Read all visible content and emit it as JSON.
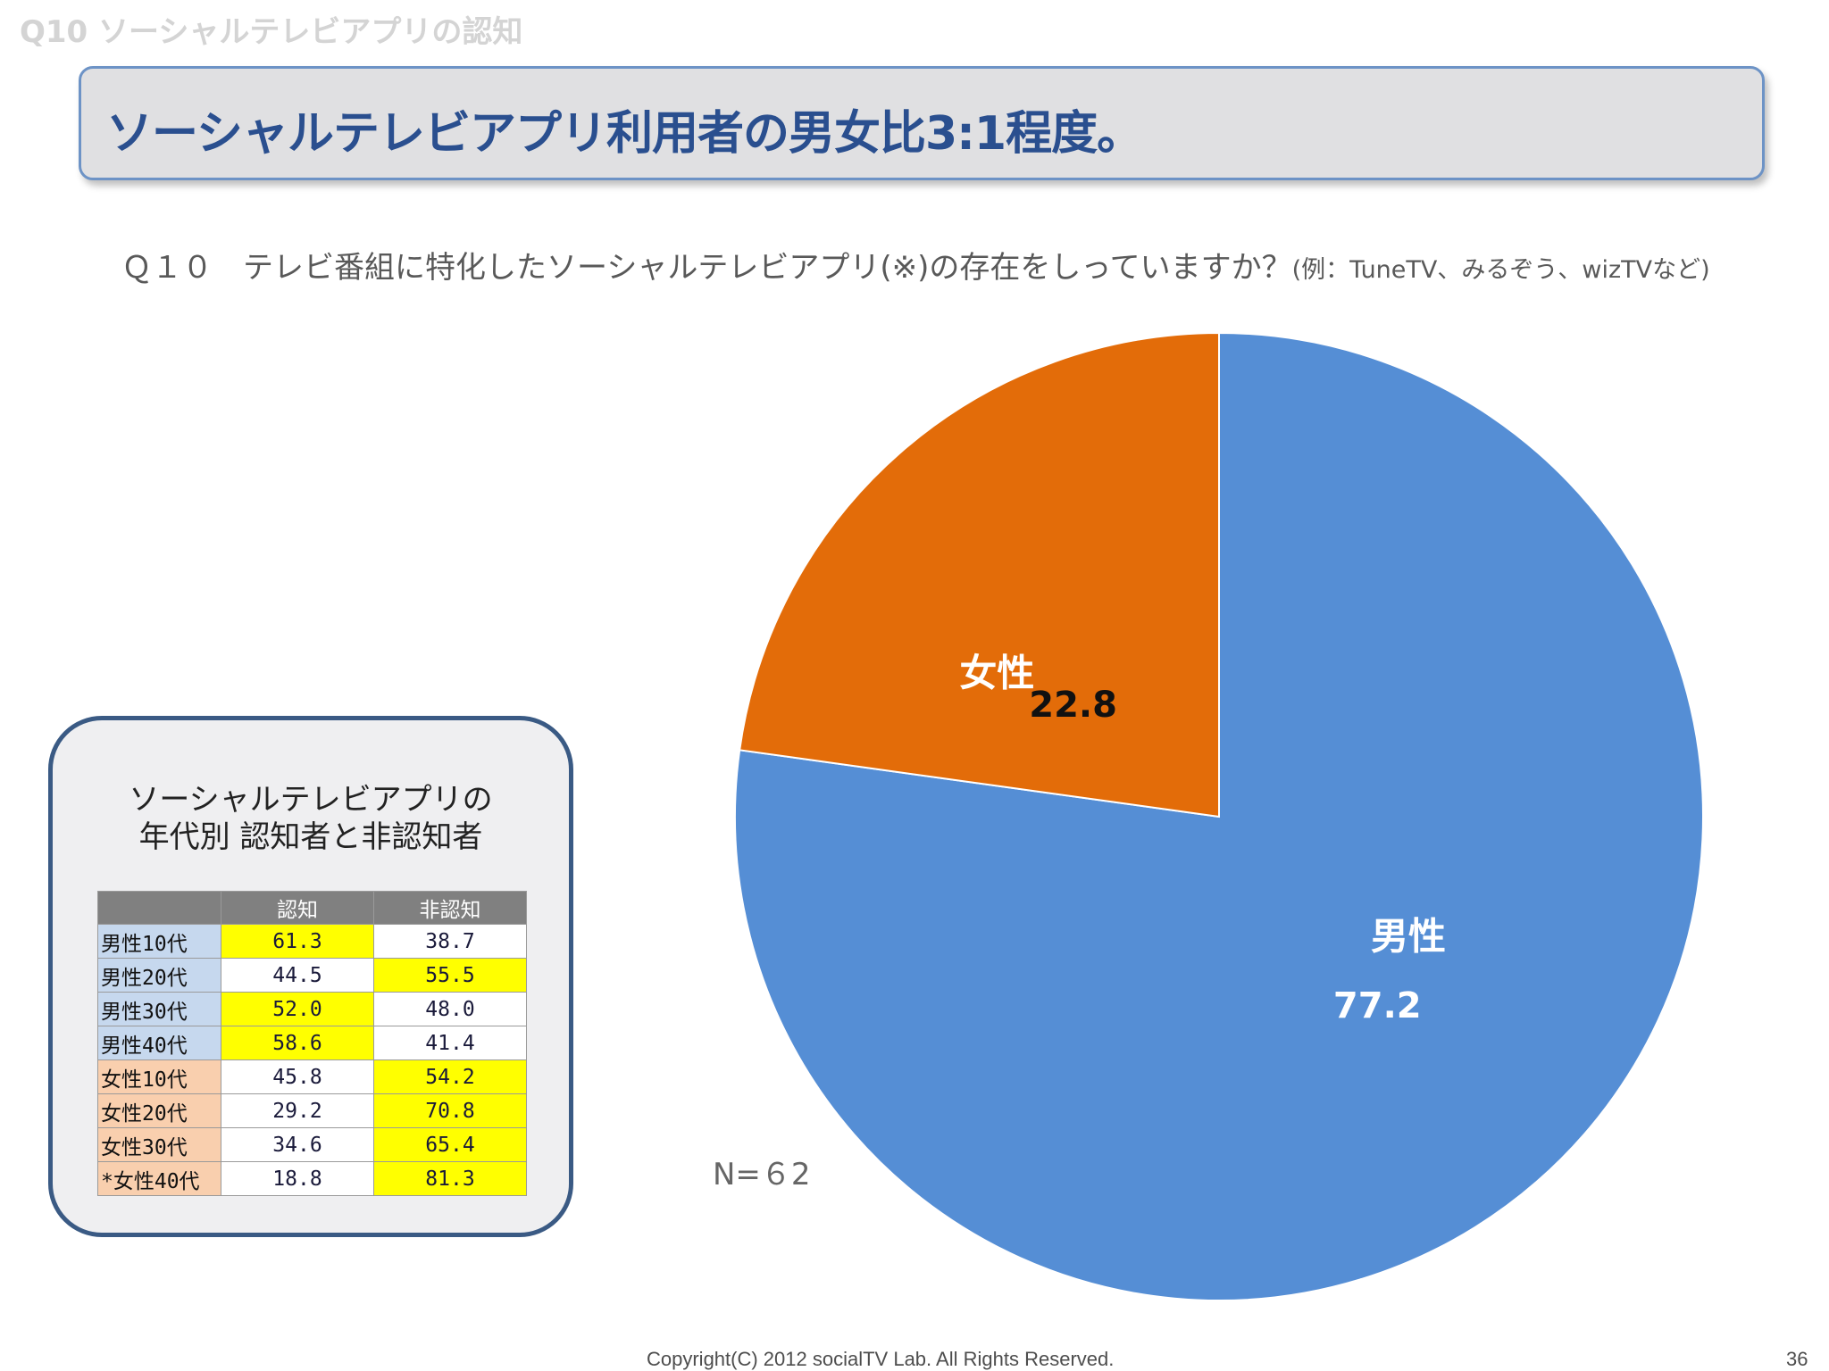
{
  "slide_header": "Q10 ソーシャルテレビアプリの認知",
  "title": "ソーシャルテレビアプリ利用者の男女比3:1程度。",
  "question": {
    "main": "Ｑ１０　テレビ番組に特化したソーシャルテレビアプリ(※)の存在をしっていますか？",
    "example": "(例：TuneTV、みるぞう、wizTVなど)"
  },
  "sample_size": "N=６2",
  "inset": {
    "title_line1": "ソーシャルテレビアプリの",
    "title_line2": "年代別 認知者と非認知者",
    "columns": [
      "",
      "認知",
      "非認知"
    ],
    "rows": [
      {
        "label": "男性10代",
        "group": "male",
        "aware": "61.3",
        "unaware": "38.7",
        "highlight": "aware"
      },
      {
        "label": "男性20代",
        "group": "male",
        "aware": "44.5",
        "unaware": "55.5",
        "highlight": "unaware"
      },
      {
        "label": "男性30代",
        "group": "male",
        "aware": "52.0",
        "unaware": "48.0",
        "highlight": "aware"
      },
      {
        "label": "男性40代",
        "group": "male",
        "aware": "58.6",
        "unaware": "41.4",
        "highlight": "aware"
      },
      {
        "label": "女性10代",
        "group": "female",
        "aware": "45.8",
        "unaware": "54.2",
        "highlight": "unaware"
      },
      {
        "label": "女性20代",
        "group": "female",
        "aware": "29.2",
        "unaware": "70.8",
        "highlight": "unaware"
      },
      {
        "label": "女性30代",
        "group": "female",
        "aware": "34.6",
        "unaware": "65.4",
        "highlight": "unaware"
      },
      {
        "label": "*女性40代",
        "group": "female",
        "aware": "18.8",
        "unaware": "81.3",
        "highlight": "unaware"
      }
    ]
  },
  "chart_data": {
    "type": "pie",
    "start": "12 o'clock, clockwise",
    "slices": [
      {
        "name": "男性",
        "value": 77.2,
        "label": "77.2",
        "color": "#558ed5",
        "name_color": "#ffffff",
        "value_color": "#ffffff"
      },
      {
        "name": "女性",
        "value": 22.8,
        "label": "22.8",
        "color": "#e36c09",
        "name_color": "#ffffff",
        "value_color": "#111111"
      }
    ]
  },
  "colors": {
    "title_text": "#2a4f8f",
    "title_border": "#6d93c6",
    "male_row": "#c6d8ee",
    "female_row": "#f9cfae",
    "highlight": "#ffff00"
  },
  "footer": "Copyright(C) 2012 socialTV Lab. All Rights Reserved.",
  "page_number": "36"
}
